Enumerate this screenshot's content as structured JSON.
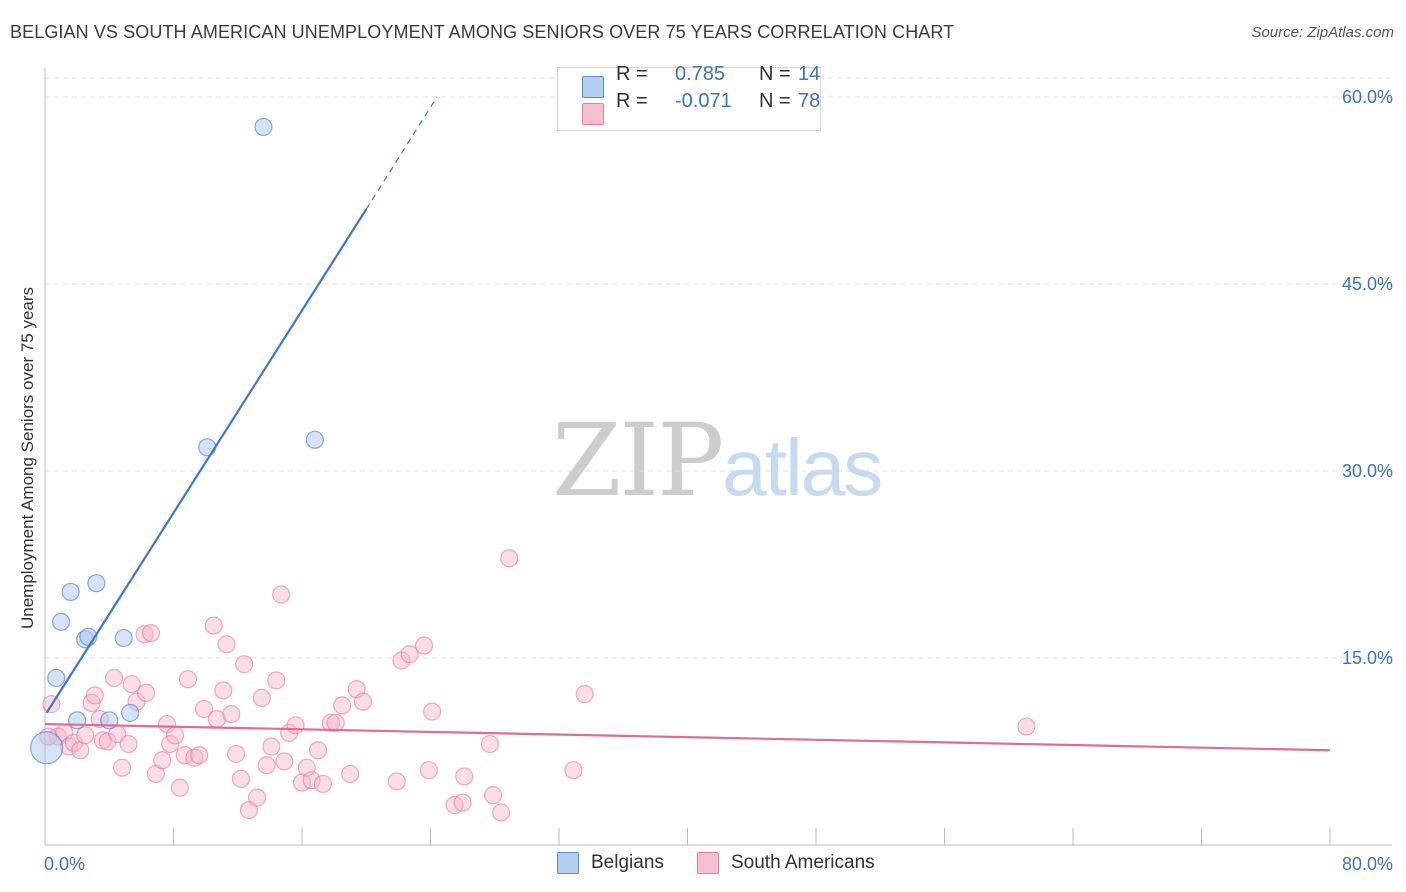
{
  "header": {
    "title": "BELGIAN VS SOUTH AMERICAN UNEMPLOYMENT AMONG SENIORS OVER 75 YEARS CORRELATION CHART",
    "source": "Source: ZipAtlas.com"
  },
  "watermark": {
    "zip": "ZIP",
    "atlas": "atlas"
  },
  "legend_top": {
    "rows": [
      {
        "r_label": "R =",
        "r_value": "0.785",
        "n_label": "N =",
        "n_value": "14",
        "color": "#a9c7ee"
      },
      {
        "r_label": "R =",
        "r_value": "-0.071",
        "n_label": "N =",
        "n_value": "78",
        "color": "#f5b6c9"
      }
    ]
  },
  "legend_bottom": {
    "items": [
      {
        "label": "Belgians",
        "color": "#a9c7ee"
      },
      {
        "label": "South Americans",
        "color": "#f5b6c9"
      }
    ]
  },
  "chart_data": {
    "type": "scatter",
    "title": "BELGIAN VS SOUTH AMERICAN UNEMPLOYMENT AMONG SENIORS OVER 75 YEARS CORRELATION CHART",
    "xlabel": "",
    "ylabel": "Unemployment Among Seniors over 75 years",
    "xlim": [
      0,
      80
    ],
    "ylim": [
      0,
      60
    ],
    "x_tick_labels": [
      "0.0%",
      "80.0%"
    ],
    "y_ticks": [
      15,
      30,
      45,
      60
    ],
    "y_tick_labels": [
      "15.0%",
      "30.0%",
      "45.0%",
      "60.0%"
    ],
    "colors": {
      "belgians": "#3c78d0",
      "belgians_fill": "#a9c7ee",
      "south_americans": "#e36a95",
      "south_americans_fill": "#f5b6c9",
      "tick_label": "#3a74c9"
    },
    "series": [
      {
        "name": "Belgians",
        "points": [
          [
            13.6,
            57.6
          ],
          [
            10.1,
            31.9
          ],
          [
            16.8,
            32.5
          ],
          [
            1.6,
            20.3
          ],
          [
            3.2,
            21.0
          ],
          [
            1.0,
            17.9
          ],
          [
            2.5,
            16.5
          ],
          [
            2.7,
            16.7
          ],
          [
            4.9,
            16.6
          ],
          [
            0.7,
            13.4
          ],
          [
            2.0,
            10.0
          ],
          [
            4.0,
            10.0
          ],
          [
            5.3,
            10.6
          ],
          [
            0.1,
            7.8
          ]
        ],
        "trend": {
          "x0": 0.1,
          "y0": 10.6,
          "x1": 20.0,
          "y1": 51.0,
          "dash_x1": 24.4,
          "dash_y1": 60.0
        }
      },
      {
        "name": "South Americans",
        "points": [
          [
            0.4,
            11.3
          ],
          [
            0.8,
            8.7
          ],
          [
            1.2,
            9.0
          ],
          [
            1.5,
            7.9
          ],
          [
            1.8,
            8.2
          ],
          [
            2.2,
            7.6
          ],
          [
            2.5,
            8.8
          ],
          [
            2.9,
            11.4
          ],
          [
            3.1,
            12.0
          ],
          [
            3.4,
            10.1
          ],
          [
            3.6,
            8.4
          ],
          [
            3.9,
            8.3
          ],
          [
            4.3,
            13.4
          ],
          [
            4.5,
            8.9
          ],
          [
            4.8,
            6.2
          ],
          [
            5.2,
            8.1
          ],
          [
            5.4,
            12.9
          ],
          [
            5.7,
            11.5
          ],
          [
            6.2,
            16.9
          ],
          [
            6.3,
            12.2
          ],
          [
            6.6,
            17.0
          ],
          [
            6.9,
            5.7
          ],
          [
            7.3,
            6.8
          ],
          [
            7.6,
            9.7
          ],
          [
            7.8,
            8.1
          ],
          [
            8.1,
            8.8
          ],
          [
            8.4,
            4.6
          ],
          [
            8.7,
            7.2
          ],
          [
            8.9,
            13.3
          ],
          [
            9.3,
            7.0
          ],
          [
            9.6,
            7.2
          ],
          [
            9.9,
            10.9
          ],
          [
            10.5,
            17.6
          ],
          [
            10.7,
            10.1
          ],
          [
            11.1,
            12.4
          ],
          [
            11.3,
            16.1
          ],
          [
            11.6,
            10.5
          ],
          [
            11.9,
            7.3
          ],
          [
            12.2,
            5.3
          ],
          [
            12.4,
            14.5
          ],
          [
            12.7,
            2.8
          ],
          [
            13.2,
            3.8
          ],
          [
            13.5,
            11.8
          ],
          [
            13.8,
            6.4
          ],
          [
            14.1,
            7.9
          ],
          [
            14.4,
            13.2
          ],
          [
            14.7,
            20.1
          ],
          [
            15.2,
            9.0
          ],
          [
            15.6,
            9.6
          ],
          [
            16.0,
            5.0
          ],
          [
            16.3,
            6.2
          ],
          [
            16.6,
            5.2
          ],
          [
            17.0,
            7.6
          ],
          [
            17.3,
            4.9
          ],
          [
            17.8,
            9.8
          ],
          [
            18.1,
            9.8
          ],
          [
            18.5,
            11.2
          ],
          [
            19.0,
            5.7
          ],
          [
            19.4,
            12.5
          ],
          [
            19.8,
            11.5
          ],
          [
            21.9,
            5.1
          ],
          [
            22.2,
            14.8
          ],
          [
            22.7,
            15.3
          ],
          [
            23.6,
            16.0
          ],
          [
            23.9,
            6.0
          ],
          [
            24.1,
            10.7
          ],
          [
            25.5,
            3.2
          ],
          [
            26.0,
            3.4
          ],
          [
            26.1,
            5.5
          ],
          [
            27.7,
            8.1
          ],
          [
            27.9,
            4.0
          ],
          [
            28.4,
            2.6
          ],
          [
            28.9,
            23.0
          ],
          [
            32.9,
            6.0
          ],
          [
            33.6,
            12.1
          ],
          [
            61.1,
            9.5
          ],
          [
            0.2,
            8.7
          ],
          [
            14.9,
            6.7
          ]
        ],
        "trend": {
          "x0": 0.0,
          "y0": 9.7,
          "x1": 80.0,
          "y1": 7.6
        }
      }
    ]
  }
}
